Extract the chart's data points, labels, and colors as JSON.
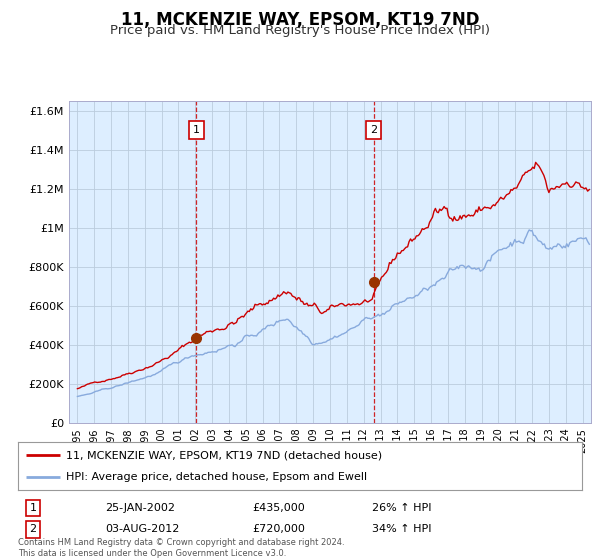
{
  "title": "11, MCKENZIE WAY, EPSOM, KT19 7ND",
  "subtitle": "Price paid vs. HM Land Registry's House Price Index (HPI)",
  "title_fontsize": 12,
  "subtitle_fontsize": 9.5,
  "plot_bg_color": "#ddeeff",
  "outer_bg_color": "#ffffff",
  "red_line_color": "#cc0000",
  "blue_line_color": "#88aadd",
  "grid_color": "#bbccdd",
  "purchase1": {
    "date_num": 2002.07,
    "price": 435000,
    "label": "1"
  },
  "purchase2": {
    "date_num": 2012.59,
    "price": 720000,
    "label": "2"
  },
  "vline1_x": 2002.07,
  "vline2_x": 2012.59,
  "ylim": [
    0,
    1650000
  ],
  "xlim": [
    1994.5,
    2025.5
  ],
  "yticks": [
    0,
    200000,
    400000,
    600000,
    800000,
    1000000,
    1200000,
    1400000,
    1600000
  ],
  "ytick_labels": [
    "£0",
    "£200K",
    "£400K",
    "£600K",
    "£800K",
    "£1M",
    "£1.2M",
    "£1.4M",
    "£1.6M"
  ],
  "xticks": [
    1995,
    1996,
    1997,
    1998,
    1999,
    2000,
    2001,
    2002,
    2003,
    2004,
    2005,
    2006,
    2007,
    2008,
    2009,
    2010,
    2011,
    2012,
    2013,
    2014,
    2015,
    2016,
    2017,
    2018,
    2019,
    2020,
    2021,
    2022,
    2023,
    2024,
    2025
  ],
  "legend_label_red": "11, MCKENZIE WAY, EPSOM, KT19 7ND (detached house)",
  "legend_label_blue": "HPI: Average price, detached house, Epsom and Ewell",
  "annotation1_date": "25-JAN-2002",
  "annotation1_price": "£435,000",
  "annotation1_hpi": "26% ↑ HPI",
  "annotation2_date": "03-AUG-2012",
  "annotation2_price": "£720,000",
  "annotation2_hpi": "34% ↑ HPI",
  "footer": "Contains HM Land Registry data © Crown copyright and database right 2024.\nThis data is licensed under the Open Government Licence v3.0.",
  "seed": 42
}
